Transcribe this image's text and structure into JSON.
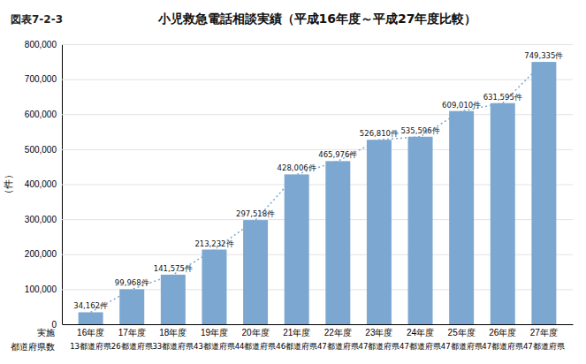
{
  "chart_data": {
    "type": "bar",
    "title": "小児救急電話相談実績（平成16年度～平成27年度比較）",
    "subtitle": "図表7-2-3",
    "ylabel": "（件）",
    "categories": [
      "16年度",
      "17年度",
      "18年度",
      "19年度",
      "20年度",
      "21年度",
      "22年度",
      "23年度",
      "24年度",
      "25年度",
      "26年度",
      "27年度"
    ],
    "values": [
      34162,
      99968,
      141575,
      213232,
      297518,
      428006,
      465976,
      526810,
      535596,
      609010,
      631595,
      749335
    ],
    "value_labels": [
      "34,162件",
      "99,968件",
      "141,575件",
      "213,232件",
      "297,518件",
      "428,006件",
      "465,976件",
      "526,810件",
      "535,596件",
      "609,010件",
      "631,595件",
      "749,335件"
    ],
    "data_labels": true,
    "color": "#7ba7d0",
    "line_style": "dotted",
    "ylim": [
      0,
      800000
    ],
    "yticks": [
      0,
      {
        "value": 100000,
        "label": "100,000"
      },
      {
        "value": 200000,
        "label": "200,000"
      },
      {
        "value": 300000,
        "label": "300,000"
      },
      {
        "value": 400000,
        "label": "400,000"
      },
      {
        "value": 500000,
        "label": "500,000"
      },
      {
        "value": 600000,
        "label": "600,000"
      },
      {
        "value": 700000,
        "label": "700,000"
      },
      {
        "value": 800000,
        "label": "800,000"
      }
    ],
    "grid": true,
    "annotations": {
      "row_labels": [
        "実施",
        "都道府県数"
      ],
      "category_notes": [
        "13都道府県",
        "26都道府県",
        "33都道府県",
        "43都道府県",
        "44都道府県",
        "46都道府県",
        "47都道府県",
        "47都道府県",
        "47都道府県",
        "47都道府県",
        "47都道府県",
        "47都道府県"
      ]
    }
  }
}
